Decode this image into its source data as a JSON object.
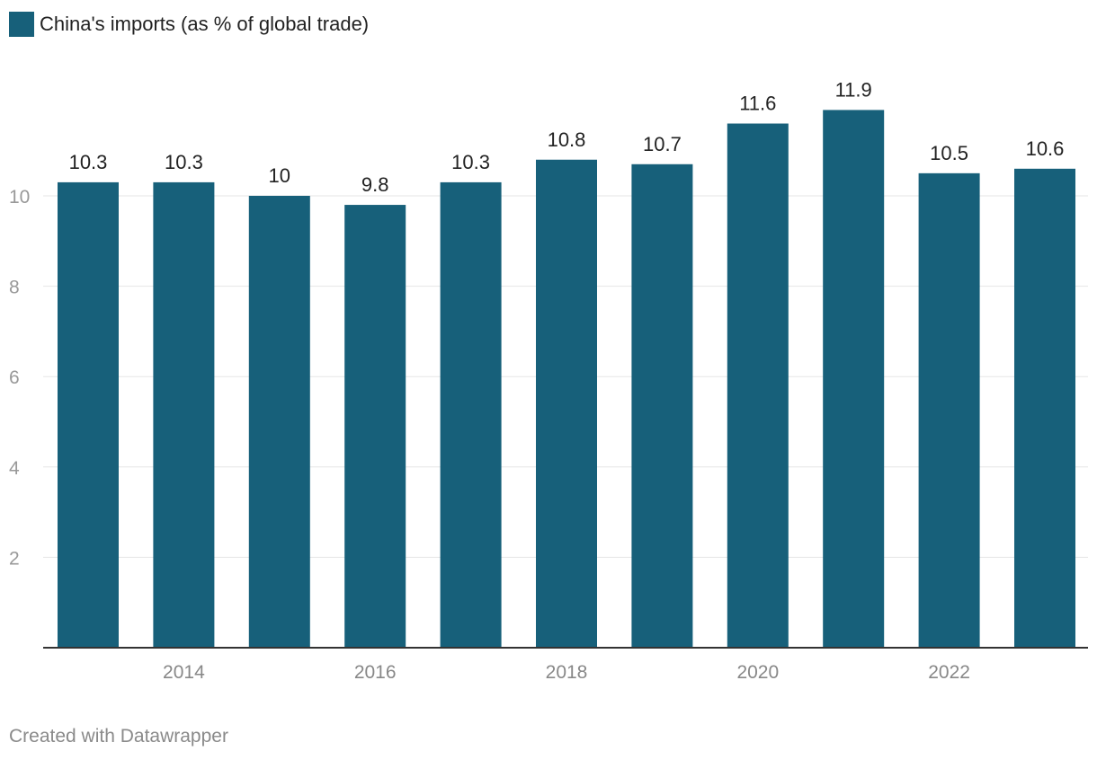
{
  "legend": {
    "label": "China's imports (as % of global trade)",
    "color": "#17607a"
  },
  "chart_data": {
    "type": "bar",
    "title": "",
    "xlabel": "",
    "ylabel": "",
    "categories": [
      "2013",
      "2014",
      "2015",
      "2016",
      "2017",
      "2018",
      "2019",
      "2020",
      "2021",
      "2022",
      "2023"
    ],
    "values": [
      10.3,
      10.3,
      10,
      9.8,
      10.3,
      10.8,
      10.7,
      11.6,
      11.9,
      10.5,
      10.6
    ],
    "value_labels": [
      "10.3",
      "10.3",
      "10",
      "9.8",
      "10.3",
      "10.8",
      "10.7",
      "11.6",
      "11.9",
      "10.5",
      "10.6"
    ],
    "x_tick_labels": [
      "2014",
      "2016",
      "2018",
      "2020",
      "2022"
    ],
    "y_ticks": [
      2,
      4,
      6,
      8,
      10
    ],
    "ylim": [
      0,
      13
    ],
    "grid": true,
    "legend_position": "top-left",
    "series_name": "China's imports (as % of global trade)"
  },
  "footer": {
    "credit": "Created with Datawrapper"
  },
  "colors": {
    "bar": "#17607a",
    "grid": "#e6e6e6",
    "axis": "#333333",
    "tick_text": "#999999",
    "xtick_text": "#888888",
    "label_text": "#222222"
  }
}
